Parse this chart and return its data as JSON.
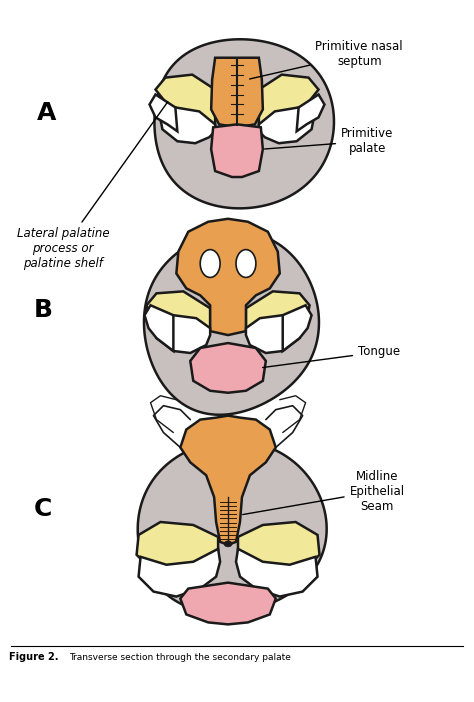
{
  "background_color": "#ffffff",
  "outline_color": "#1a1a1a",
  "gray_fill": "#c8c0be",
  "yellow_fill": "#f2e89a",
  "orange_fill": "#e8a050",
  "pink_fill": "#f0a8b0",
  "white_fill": "#ffffff",
  "dark_fill": "#1a1a1a",
  "label_A": "A",
  "label_B": "B",
  "label_C": "C",
  "ann_nasal_septum": "Primitive nasal\nseptum",
  "ann_primitive_palate": "Primitive\npalate",
  "ann_lateral": "Lateral palatine\nprocess or\npalatine shelf",
  "ann_tongue": "Tongue",
  "ann_midline": "Midline\nEpithelial\nSeam",
  "fig_width": 4.74,
  "fig_height": 7.02,
  "dpi": 100
}
